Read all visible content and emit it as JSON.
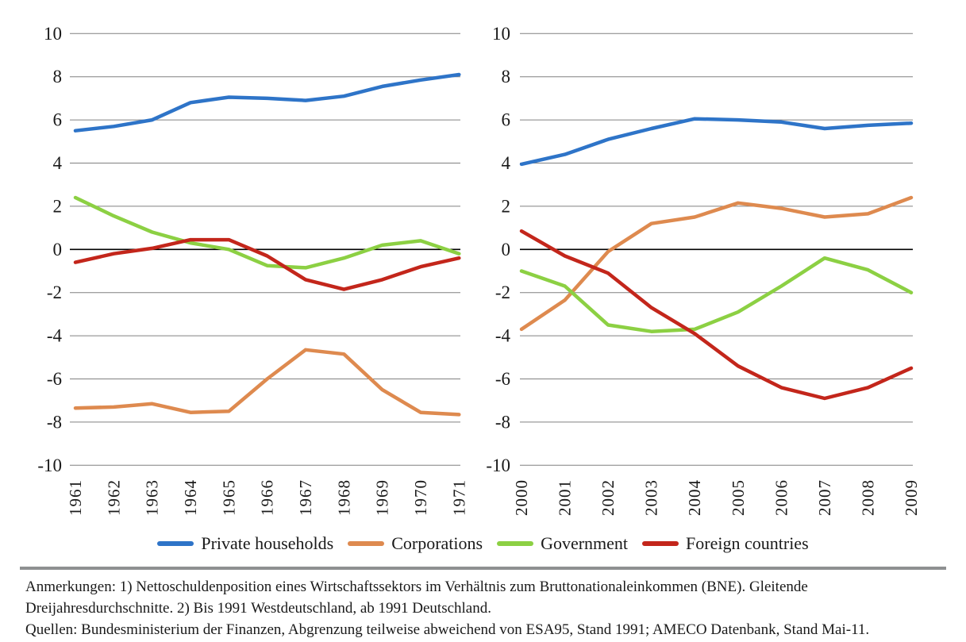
{
  "colors": {
    "private_households": "#2E74C8",
    "corporations": "#DE8A4F",
    "government": "#8CD043",
    "foreign_countries": "#C3261B",
    "gridline": "#808080",
    "zero_line": "#000000",
    "separator": "#8e9091"
  },
  "axis": {
    "y_tick_labels": [
      "10",
      "8",
      "6",
      "4",
      "2",
      "0",
      "-2",
      "-4",
      "-6",
      "-8",
      "-10"
    ]
  },
  "chart_data": [
    {
      "type": "line",
      "title": "",
      "xlabel": "",
      "ylabel": "",
      "ylim": [
        -10,
        10
      ],
      "ytick_step": 2,
      "grid": true,
      "legend_position": "bottom",
      "categories": [
        "1961",
        "1962",
        "1963",
        "1964",
        "1965",
        "1966",
        "1967",
        "1968",
        "1969",
        "1970",
        "1971"
      ],
      "series": [
        {
          "name": "Private households",
          "color": "private_households",
          "values": [
            5.5,
            5.7,
            6.0,
            6.8,
            7.05,
            7.0,
            6.9,
            7.1,
            7.55,
            7.85,
            8.1
          ]
        },
        {
          "name": "Corporations",
          "color": "corporations",
          "values": [
            -7.35,
            -7.3,
            -7.15,
            -7.55,
            -7.5,
            -6.0,
            -4.65,
            -4.85,
            -6.5,
            -7.55,
            -7.65
          ]
        },
        {
          "name": "Government",
          "color": "government",
          "values": [
            2.4,
            1.55,
            0.8,
            0.3,
            0.0,
            -0.75,
            -0.85,
            -0.4,
            0.2,
            0.4,
            -0.2
          ]
        },
        {
          "name": "Foreign countries",
          "color": "foreign_countries",
          "values": [
            -0.6,
            -0.2,
            0.05,
            0.45,
            0.45,
            -0.3,
            -1.4,
            -1.85,
            -1.4,
            -0.8,
            -0.4
          ]
        }
      ]
    },
    {
      "type": "line",
      "title": "",
      "xlabel": "",
      "ylabel": "",
      "ylim": [
        -10,
        10
      ],
      "ytick_step": 2,
      "grid": true,
      "legend_position": "bottom",
      "categories": [
        "2000",
        "2001",
        "2002",
        "2003",
        "2004",
        "2005",
        "2006",
        "2007",
        "2008",
        "2009"
      ],
      "series": [
        {
          "name": "Private households",
          "color": "private_households",
          "values": [
            3.95,
            4.4,
            5.1,
            5.6,
            6.05,
            6.0,
            5.9,
            5.6,
            5.75,
            5.85
          ]
        },
        {
          "name": "Corporations",
          "color": "corporations",
          "values": [
            -3.7,
            -2.35,
            -0.1,
            1.2,
            1.5,
            2.15,
            1.9,
            1.5,
            1.65,
            2.4
          ]
        },
        {
          "name": "Government",
          "color": "government",
          "values": [
            -1.0,
            -1.7,
            -3.5,
            -3.8,
            -3.7,
            -2.9,
            -1.7,
            -0.4,
            -0.95,
            -2.0
          ]
        },
        {
          "name": "Foreign countries",
          "color": "foreign_countries",
          "values": [
            0.85,
            -0.3,
            -1.1,
            -2.7,
            -3.9,
            -5.4,
            -6.4,
            -6.9,
            -6.4,
            -5.5
          ]
        }
      ]
    }
  ],
  "legend": {
    "items": [
      {
        "label": "Private households",
        "color": "private_households"
      },
      {
        "label": "Corporations",
        "color": "corporations"
      },
      {
        "label": "Government",
        "color": "government"
      },
      {
        "label": "Foreign countries",
        "color": "foreign_countries"
      }
    ]
  },
  "notes": {
    "lines": [
      "Anmerkungen: 1) Nettoschuldenposition eines Wirtschaftssektors im Verhältnis zum Bruttonationaleinkommen (BNE). Gleitende",
      "Dreijahresdurchschnitte. 2) Bis 1991 Westdeutschland, ab 1991 Deutschland.",
      "Quellen: Bundesministerium der Finanzen, Abgrenzung teilweise abweichend von ESA95, Stand 1991; AMECO Datenbank, Stand Mai-11."
    ]
  }
}
